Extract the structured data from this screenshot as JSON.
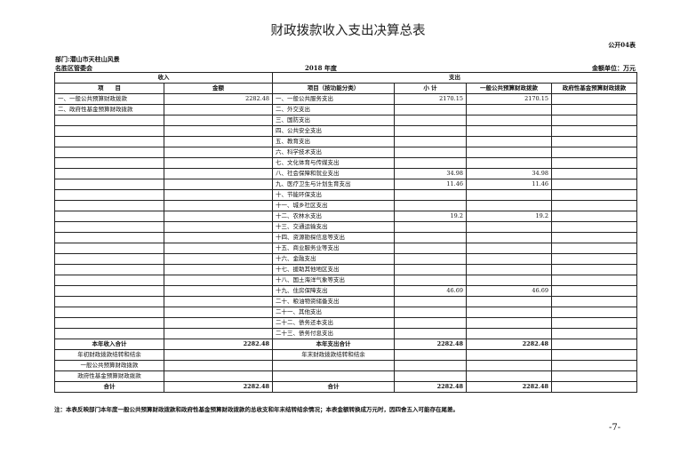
{
  "title": "财政拨款收入支出决算总表",
  "form_no": "公开04表",
  "department_line1": "部门:潜山市天柱山风景",
  "department_line2": "名胜区管委会",
  "year": "2018 年度",
  "unit": "金额单位：万元",
  "headers": {
    "income": "收入",
    "expense": "支出",
    "item": "项　　目",
    "amount": "金额",
    "item_by_function": "项目（按功能分类）",
    "subtotal": "小 计",
    "general_budget": "一般公共预算财政拨款",
    "fund_budget": "政府性基金预算财政拨款"
  },
  "rows": [
    {
      "income_item": "一、一般公共预算财政拨款",
      "income_amount": "2282.48",
      "expense_item": "一、一般公共服务支出",
      "subtotal": "2170.15",
      "general": "2170.15",
      "fund": ""
    },
    {
      "income_item": "二、政府性基金预算财政拨款",
      "income_amount": "",
      "expense_item": "二、外交支出",
      "subtotal": "",
      "general": "",
      "fund": ""
    },
    {
      "income_item": "",
      "income_amount": "",
      "expense_item": "三、国防支出",
      "subtotal": "",
      "general": "",
      "fund": ""
    },
    {
      "income_item": "",
      "income_amount": "",
      "expense_item": "四、公共安全支出",
      "subtotal": "",
      "general": "",
      "fund": ""
    },
    {
      "income_item": "",
      "income_amount": "",
      "expense_item": "五、教育支出",
      "subtotal": "",
      "general": "",
      "fund": ""
    },
    {
      "income_item": "",
      "income_amount": "",
      "expense_item": "六、科学技术支出",
      "subtotal": "",
      "general": "",
      "fund": ""
    },
    {
      "income_item": "",
      "income_amount": "",
      "expense_item": "七、文化体育与传媒支出",
      "subtotal": "",
      "general": "",
      "fund": ""
    },
    {
      "income_item": "",
      "income_amount": "",
      "expense_item": "八、社会保障和就业支出",
      "subtotal": "34.98",
      "general": "34.98",
      "fund": ""
    },
    {
      "income_item": "",
      "income_amount": "",
      "expense_item": "九、医疗卫生与计划生育支出",
      "subtotal": "11.46",
      "general": "11.46",
      "fund": ""
    },
    {
      "income_item": "",
      "income_amount": "",
      "expense_item": "十、节能环保支出",
      "subtotal": "",
      "general": "",
      "fund": ""
    },
    {
      "income_item": "",
      "income_amount": "",
      "expense_item": "十一、城乡社区支出",
      "subtotal": "",
      "general": "",
      "fund": ""
    },
    {
      "income_item": "",
      "income_amount": "",
      "expense_item": "十二、农林水支出",
      "subtotal": "19.2",
      "general": "19.2",
      "fund": ""
    },
    {
      "income_item": "",
      "income_amount": "",
      "expense_item": "十三、交通运输支出",
      "subtotal": "",
      "general": "",
      "fund": ""
    },
    {
      "income_item": "",
      "income_amount": "",
      "expense_item": "十四、资源勘探信息等支出",
      "subtotal": "",
      "general": "",
      "fund": ""
    },
    {
      "income_item": "",
      "income_amount": "",
      "expense_item": "十五、商业服务业等支出",
      "subtotal": "",
      "general": "",
      "fund": ""
    },
    {
      "income_item": "",
      "income_amount": "",
      "expense_item": "十六、金融支出",
      "subtotal": "",
      "general": "",
      "fund": ""
    },
    {
      "income_item": "",
      "income_amount": "",
      "expense_item": "十七、援助其他地区支出",
      "subtotal": "",
      "general": "",
      "fund": ""
    },
    {
      "income_item": "",
      "income_amount": "",
      "expense_item": "十八、国土海洋气象等支出",
      "subtotal": "",
      "general": "",
      "fund": ""
    },
    {
      "income_item": "",
      "income_amount": "",
      "expense_item": "十九、住房保障支出",
      "subtotal": "46.69",
      "general": "46.69",
      "fund": ""
    },
    {
      "income_item": "",
      "income_amount": "",
      "expense_item": "二十、粮油物资储备支出",
      "subtotal": "",
      "general": "",
      "fund": ""
    },
    {
      "income_item": "",
      "income_amount": "",
      "expense_item": "二十一、其他支出",
      "subtotal": "",
      "general": "",
      "fund": ""
    },
    {
      "income_item": "",
      "income_amount": "",
      "expense_item": "二十二、债务还本支出",
      "subtotal": "",
      "general": "",
      "fund": ""
    },
    {
      "income_item": "",
      "income_amount": "",
      "expense_item": "二十三、债务付息支出",
      "subtotal": "",
      "general": "",
      "fund": ""
    }
  ],
  "summary_rows": [
    {
      "income_item": "本年收入合计",
      "income_amount": "2282.48",
      "expense_item": "本年支出合计",
      "subtotal": "2282.48",
      "general": "2282.48",
      "fund": "",
      "bold": true
    },
    {
      "income_item": "年初财政拨款结转和结余",
      "income_amount": "",
      "expense_item": "年末财政拨款结转和结余",
      "subtotal": "",
      "general": "",
      "fund": "",
      "bold": false
    },
    {
      "income_item": "一般公共预算财政拨款",
      "income_amount": "",
      "expense_item": "",
      "subtotal": "",
      "general": "",
      "fund": "",
      "bold": false
    },
    {
      "income_item": "政府性基金预算财政拨款",
      "income_amount": "",
      "expense_item": "",
      "subtotal": "",
      "general": "",
      "fund": "",
      "bold": false
    },
    {
      "income_item": "合计",
      "income_amount": "2282.48",
      "expense_item": "合计",
      "subtotal": "2282.48",
      "general": "2282.48",
      "fund": "",
      "bold": true
    }
  ],
  "note": "注：本表反映部门本年度一般公共预算财政拨款和政府性基金预算财政拨款的总收支和年末结转结余情况；本表金额转换成万元时，因四舍五入可能存在尾差。",
  "page_number": "-7-"
}
